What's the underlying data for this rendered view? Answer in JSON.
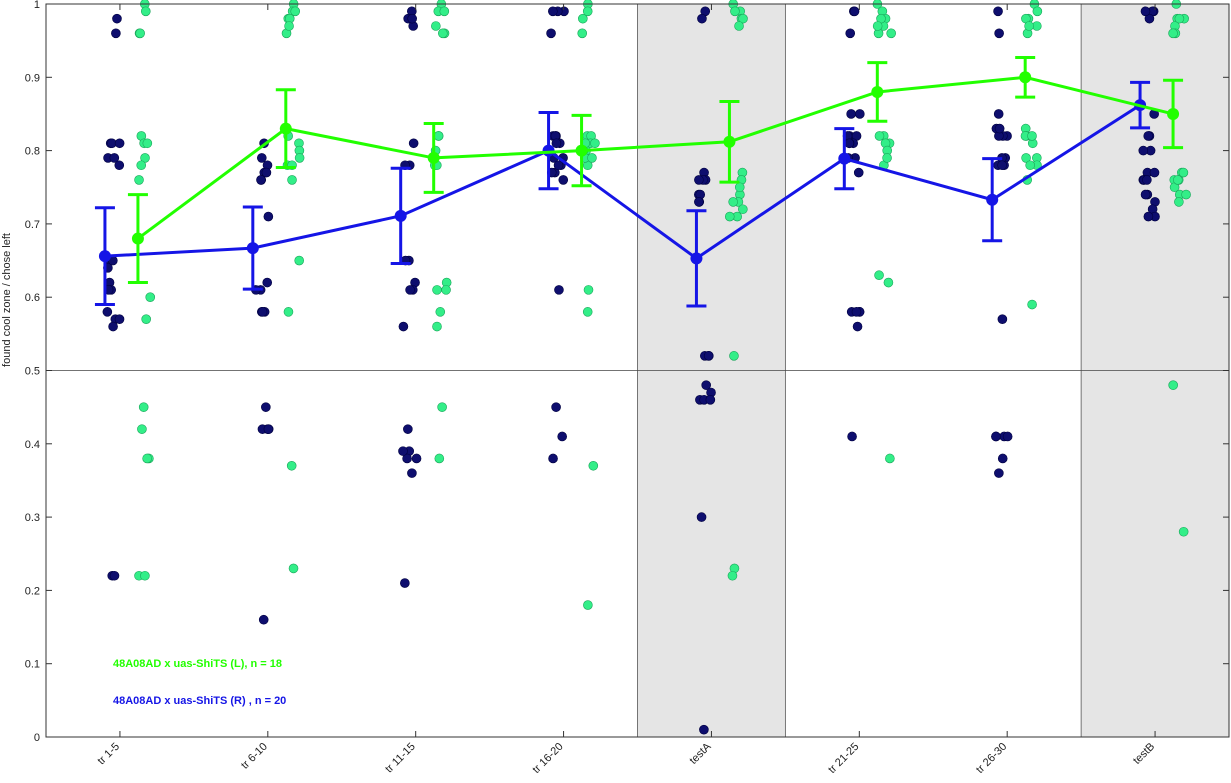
{
  "chart_data": {
    "type": "scatter",
    "title": "",
    "xlabel": "",
    "ylabel": "found cool zone / chose left",
    "ylim": [
      0,
      1
    ],
    "yticks": [
      "0",
      "0.1",
      "0.2",
      "0.3",
      "0.4",
      "0.5",
      "0.6",
      "0.7",
      "0.8",
      "0.9",
      "1"
    ],
    "ytick_values": [
      0,
      0.1,
      0.2,
      0.3,
      0.4,
      0.5,
      0.6,
      0.7,
      0.8,
      0.9,
      1
    ],
    "categories": [
      "tr 1-5",
      "tr 6-10",
      "tr 11-15",
      "tr 16-20",
      "testA",
      "tr 21-25",
      "tr 26-30",
      "testB"
    ],
    "shaded_categories": [
      "testA",
      "testB"
    ],
    "reference_line": 0.5,
    "grid": false,
    "legend_position": "bottom-left",
    "series": [
      {
        "name": "48A08AD x uas-ShiTS (L), n = 18",
        "color": "#22ff00",
        "point_color": "#33ee88",
        "mean": [
          0.68,
          0.83,
          0.79,
          0.8,
          0.812,
          0.88,
          0.9,
          0.85
        ],
        "sem": [
          0.06,
          0.053,
          0.047,
          0.048,
          0.055,
          0.04,
          0.027,
          0.046
        ],
        "points": [
          [
            1,
            0.99,
            0.96,
            0.82,
            0.81,
            0.79,
            0.76,
            0.6,
            0.57,
            0.45,
            0.42,
            0.38,
            0.38,
            0.22,
            0.22,
            0.78,
            0.81,
            0.96
          ],
          [
            1,
            0.99,
            0.98,
            0.96,
            0.81,
            0.8,
            0.78,
            0.76,
            0.65,
            0.58,
            0.37,
            0.23,
            0.99,
            0.98,
            0.82,
            0.79,
            0.78,
            0.97
          ],
          [
            1,
            0.99,
            0.97,
            0.96,
            0.82,
            0.82,
            0.78,
            0.62,
            0.61,
            0.61,
            0.58,
            0.56,
            0.45,
            0.38,
            0.99,
            0.96,
            0.8,
            0.78
          ],
          [
            1,
            0.98,
            0.96,
            0.82,
            0.82,
            0.81,
            0.81,
            0.8,
            0.78,
            0.61,
            0.58,
            0.37,
            0.18,
            0.99,
            0.81,
            0.79,
            0.79,
            0.8
          ],
          [
            1,
            0.99,
            0.98,
            0.98,
            0.77,
            0.76,
            0.74,
            0.73,
            0.71,
            0.71,
            0.52,
            0.23,
            0.22,
            0.99,
            0.97,
            0.75,
            0.73,
            0.72
          ],
          [
            1,
            0.99,
            0.98,
            0.97,
            0.96,
            0.96,
            0.82,
            0.81,
            0.81,
            0.78,
            0.63,
            0.62,
            0.38,
            0.98,
            0.97,
            0.82,
            0.8,
            0.79
          ],
          [
            1,
            0.99,
            0.98,
            0.97,
            0.96,
            0.83,
            0.82,
            0.82,
            0.81,
            0.79,
            0.78,
            0.76,
            0.59,
            0.98,
            0.97,
            0.82,
            0.79,
            0.78
          ],
          [
            1,
            0.98,
            0.98,
            0.97,
            0.96,
            0.96,
            0.77,
            0.76,
            0.76,
            0.75,
            0.74,
            0.73,
            0.48,
            0.28,
            0.98,
            0.77,
            0.76,
            0.74
          ]
        ]
      },
      {
        "name": "48A08AD x uas-ShiTS (R) , n = 20",
        "color": "#1515e6",
        "point_color": "#0e0e6e",
        "mean": [
          0.656,
          0.667,
          0.711,
          0.8,
          0.653,
          0.789,
          0.733,
          0.862
        ],
        "sem": [
          0.066,
          0.056,
          0.065,
          0.052,
          0.065,
          0.041,
          0.056,
          0.031
        ],
        "points": [
          [
            0.98,
            0.96,
            0.81,
            0.81,
            0.79,
            0.78,
            0.65,
            0.64,
            0.62,
            0.61,
            0.58,
            0.57,
            0.56,
            0.22,
            0.22,
            0.81,
            0.79,
            0.65,
            0.61,
            0.57
          ],
          [
            0.81,
            0.79,
            0.78,
            0.77,
            0.76,
            0.71,
            0.62,
            0.61,
            0.58,
            0.58,
            0.45,
            0.42,
            0.42,
            0.42,
            0.16,
            0.77,
            0.76,
            0.61,
            0.42,
            0.58
          ],
          [
            0.99,
            0.98,
            0.97,
            0.81,
            0.78,
            0.65,
            0.62,
            0.61,
            0.56,
            0.42,
            0.39,
            0.38,
            0.36,
            0.21,
            0.98,
            0.78,
            0.65,
            0.61,
            0.38,
            0.39
          ],
          [
            0.99,
            0.99,
            0.96,
            0.82,
            0.82,
            0.81,
            0.79,
            0.78,
            0.77,
            0.76,
            0.61,
            0.45,
            0.41,
            0.38,
            0.82,
            0.81,
            0.79,
            0.78,
            0.77,
            0.99
          ],
          [
            0.99,
            0.98,
            0.77,
            0.76,
            0.76,
            0.74,
            0.73,
            0.52,
            0.52,
            0.48,
            0.47,
            0.46,
            0.46,
            0.3,
            0.01,
            0.76,
            0.74,
            0.52,
            0.46,
            0.73
          ],
          [
            0.99,
            0.96,
            0.85,
            0.82,
            0.82,
            0.81,
            0.81,
            0.79,
            0.77,
            0.58,
            0.58,
            0.58,
            0.56,
            0.41,
            0.82,
            0.81,
            0.79,
            0.58,
            0.99,
            0.85
          ],
          [
            0.99,
            0.96,
            0.85,
            0.83,
            0.82,
            0.82,
            0.79,
            0.78,
            0.78,
            0.57,
            0.41,
            0.41,
            0.41,
            0.38,
            0.36,
            0.82,
            0.79,
            0.78,
            0.41,
            0.83
          ],
          [
            0.99,
            0.99,
            0.98,
            0.82,
            0.8,
            0.77,
            0.76,
            0.76,
            0.74,
            0.73,
            0.72,
            0.71,
            0.71,
            0.85,
            0.82,
            0.8,
            0.77,
            0.76,
            0.74,
            0.99
          ]
        ]
      }
    ]
  }
}
